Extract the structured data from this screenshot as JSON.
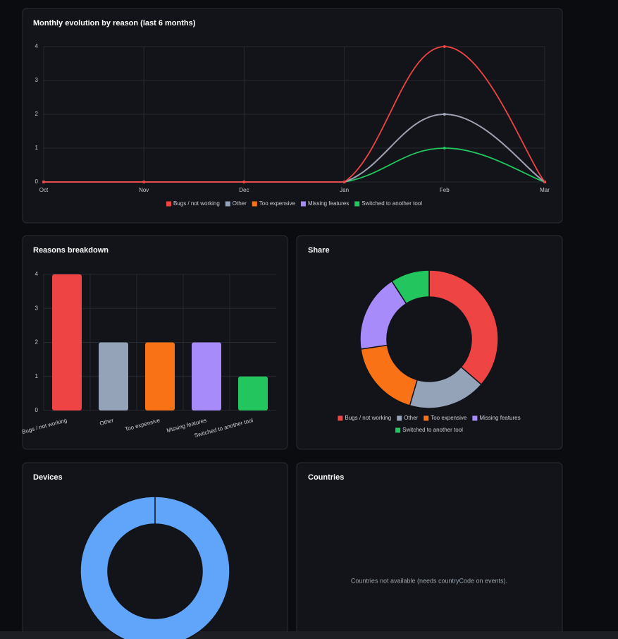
{
  "chart_data": [
    {
      "type": "line",
      "title": "Monthly evolution by reason (last 6 months)",
      "categories": [
        "Oct",
        "Nov",
        "Dec",
        "Jan",
        "Feb",
        "Mar"
      ],
      "series": [
        {
          "name": "Bugs / not working",
          "color": "#ef4444",
          "values": [
            0,
            0,
            0,
            0,
            4,
            0
          ]
        },
        {
          "name": "Other",
          "color": "#94a3b8",
          "values": [
            0,
            0,
            0,
            0,
            2,
            0
          ]
        },
        {
          "name": "Too expensive",
          "color": "#f97316",
          "values": [
            0,
            0,
            0,
            0,
            2,
            0
          ]
        },
        {
          "name": "Missing features",
          "color": "#a78bfa",
          "values": [
            0,
            0,
            0,
            0,
            2,
            0
          ]
        },
        {
          "name": "Switched to another tool",
          "color": "#22c55e",
          "values": [
            0,
            0,
            0,
            0,
            1,
            0
          ]
        }
      ],
      "ylim": [
        0,
        4
      ],
      "yticks": [
        0,
        1,
        2,
        3,
        4
      ],
      "grid": true,
      "legend": "bottom"
    },
    {
      "type": "bar",
      "title": "Reasons breakdown",
      "categories": [
        "Bugs / not working",
        "Other",
        "Too expensive",
        "Missing features",
        "Switched to another tool"
      ],
      "values": [
        4,
        2,
        2,
        2,
        1
      ],
      "colors": [
        "#ef4444",
        "#94a3b8",
        "#f97316",
        "#a78bfa",
        "#22c55e"
      ],
      "ylim": [
        0,
        4
      ],
      "yticks": [
        0,
        1,
        2,
        3,
        4
      ],
      "grid": true
    },
    {
      "type": "doughnut",
      "title": "Share",
      "categories": [
        "Bugs / not working",
        "Other",
        "Too expensive",
        "Missing features",
        "Switched to another tool"
      ],
      "values": [
        4,
        2,
        2,
        2,
        1
      ],
      "colors": [
        "#ef4444",
        "#94a3b8",
        "#f97316",
        "#a78bfa",
        "#22c55e"
      ],
      "legend": "bottom"
    },
    {
      "type": "doughnut",
      "title": "Devices",
      "categories": [
        null
      ],
      "values": [
        1
      ],
      "colors": [
        "#60a5fa"
      ]
    }
  ],
  "countries": {
    "title": "Countries",
    "message": "Countries not available (needs countryCode on events)."
  }
}
